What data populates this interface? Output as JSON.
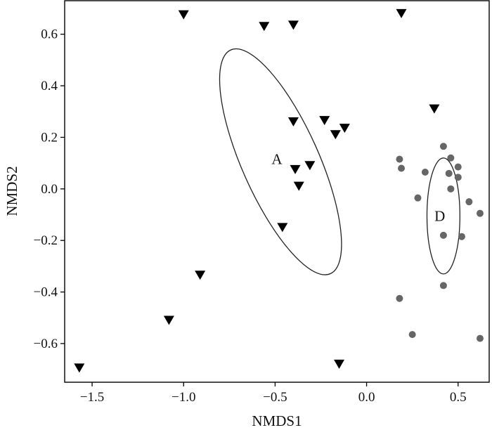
{
  "chart_data": {
    "type": "scatter",
    "title": "",
    "xlabel": "NMDS1",
    "ylabel": "NMDS2",
    "xlim": [
      -1.65,
      0.67
    ],
    "ylim": [
      -0.75,
      0.73
    ],
    "xticks": [
      {
        "value": -1.5,
        "label": "−1.5"
      },
      {
        "value": -1.0,
        "label": "−1.0"
      },
      {
        "value": -0.5,
        "label": "−0.5"
      },
      {
        "value": 0.0,
        "label": "0.0"
      },
      {
        "value": 0.5,
        "label": "0.5"
      }
    ],
    "yticks": [
      {
        "value": 0.6,
        "label": "0.6"
      },
      {
        "value": 0.4,
        "label": "0.4"
      },
      {
        "value": 0.2,
        "label": "0.2"
      },
      {
        "value": 0.0,
        "label": "0.0"
      },
      {
        "value": -0.2,
        "label": "−0.2"
      },
      {
        "value": -0.4,
        "label": "−0.4"
      },
      {
        "value": -0.6,
        "label": "−0.6"
      }
    ],
    "grid": false,
    "legend": "none",
    "series": [
      {
        "marker": "triangle-down",
        "color": "#000000",
        "points": [
          [
            -1.0,
            0.675
          ],
          [
            -0.56,
            0.63
          ],
          [
            -0.4,
            0.635
          ],
          [
            0.19,
            0.68
          ],
          [
            -0.4,
            0.26
          ],
          [
            -0.23,
            0.265
          ],
          [
            -0.17,
            0.21
          ],
          [
            -0.12,
            0.235
          ],
          [
            -0.39,
            0.075
          ],
          [
            -0.31,
            0.09
          ],
          [
            -0.37,
            0.01
          ],
          [
            -0.46,
            -0.15
          ],
          [
            0.37,
            0.31
          ],
          [
            -0.91,
            -0.335
          ],
          [
            -1.08,
            -0.51
          ],
          [
            -1.57,
            -0.695
          ],
          [
            -0.15,
            -0.68
          ]
        ]
      },
      {
        "marker": "circle",
        "color": "#666666",
        "points": [
          [
            0.18,
            0.115
          ],
          [
            0.19,
            0.08
          ],
          [
            0.42,
            0.165
          ],
          [
            0.46,
            0.12
          ],
          [
            0.32,
            0.065
          ],
          [
            0.45,
            0.06
          ],
          [
            0.5,
            0.085
          ],
          [
            0.5,
            0.045
          ],
          [
            0.46,
            0.0
          ],
          [
            0.28,
            -0.035
          ],
          [
            0.56,
            -0.05
          ],
          [
            0.62,
            -0.095
          ],
          [
            0.42,
            -0.18
          ],
          [
            0.52,
            -0.185
          ],
          [
            0.42,
            -0.375
          ],
          [
            0.18,
            -0.425
          ],
          [
            0.25,
            -0.565
          ],
          [
            0.62,
            -0.58
          ]
        ]
      }
    ],
    "ellipses": [
      {
        "label": "A",
        "cx": -0.47,
        "cy": 0.105,
        "rx": 0.21,
        "ry": 0.475,
        "angle_deg": -24,
        "label_x": -0.49,
        "label_y": 0.115
      },
      {
        "label": "D",
        "cx": 0.42,
        "cy": -0.105,
        "rx": 0.09,
        "ry": 0.225,
        "angle_deg": 0,
        "label_x": 0.4,
        "label_y": -0.105
      }
    ]
  }
}
